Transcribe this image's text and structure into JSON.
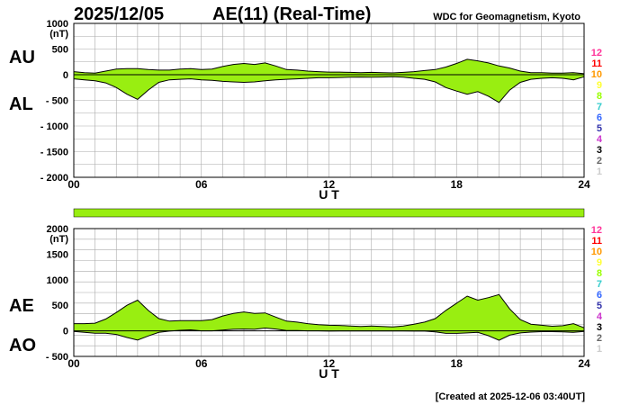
{
  "header": {
    "date": "2025/12/05",
    "title": "AE(11) (Real-Time)",
    "source": "WDC for Geomagnetism, Kyoto"
  },
  "footer": {
    "created": "[Created at 2025-12-06 03:40UT]"
  },
  "station_counts": {
    "labels": [
      "12",
      "11",
      "10",
      "9",
      "8",
      "7",
      "6",
      "5",
      "4",
      "3",
      "2",
      "1"
    ],
    "colors": [
      "#ff3399",
      "#ff0000",
      "#ff9900",
      "#ffff33",
      "#99ff00",
      "#33cccc",
      "#3366ff",
      "#3333aa",
      "#cc33cc",
      "#000000",
      "#666666",
      "#cccccc"
    ]
  },
  "colors": {
    "fill": "#99ee11",
    "line": "#000000",
    "grid": "#aaaaaa",
    "bar": "#99ee11"
  },
  "chart_data": [
    {
      "type": "area",
      "name": "AU/AL",
      "ylabels": [
        "AU",
        "AL"
      ],
      "unit": "(nT)",
      "xlabel": "U T",
      "xticks": [
        0,
        6,
        12,
        18,
        24
      ],
      "xticklabels": [
        "00",
        "06",
        "12",
        "18",
        "24"
      ],
      "xlim": [
        0,
        24
      ],
      "ylim": [
        -2000,
        1000
      ],
      "yticks": [
        1000,
        500,
        0,
        -500,
        -1000,
        -1500,
        -2000
      ],
      "yticklabels": [
        "1000",
        "500",
        "0",
        "- 500",
        "- 1000",
        "- 1500",
        "- 2000"
      ],
      "grid": true,
      "x": [
        0.0,
        0.5,
        1.0,
        1.5,
        2.0,
        2.5,
        3.0,
        3.5,
        4.0,
        4.5,
        5.0,
        5.5,
        6.0,
        6.5,
        7.0,
        7.5,
        8.0,
        8.5,
        9.0,
        9.5,
        10.0,
        10.5,
        11.0,
        11.5,
        12.0,
        12.5,
        13.0,
        13.5,
        14.0,
        14.5,
        15.0,
        15.5,
        16.0,
        16.5,
        17.0,
        17.5,
        18.0,
        18.5,
        19.0,
        19.5,
        20.0,
        20.5,
        21.0,
        21.5,
        22.0,
        22.5,
        23.0,
        23.5,
        24.0
      ],
      "series": [
        {
          "name": "AU",
          "values": [
            60,
            40,
            30,
            70,
            110,
            120,
            120,
            100,
            90,
            90,
            110,
            120,
            100,
            110,
            160,
            200,
            220,
            200,
            230,
            170,
            100,
            90,
            70,
            60,
            50,
            50,
            45,
            40,
            45,
            40,
            35,
            45,
            60,
            80,
            100,
            150,
            220,
            300,
            270,
            230,
            170,
            130,
            70,
            40,
            40,
            30,
            30,
            40,
            20
          ]
        },
        {
          "name": "AL",
          "values": [
            -80,
            -100,
            -120,
            -160,
            -250,
            -380,
            -480,
            -300,
            -150,
            -100,
            -90,
            -80,
            -100,
            -110,
            -130,
            -140,
            -150,
            -140,
            -120,
            -100,
            -90,
            -80,
            -70,
            -60,
            -60,
            -55,
            -50,
            -45,
            -50,
            -45,
            -40,
            -50,
            -70,
            -90,
            -140,
            -250,
            -320,
            -380,
            -330,
            -420,
            -540,
            -300,
            -150,
            -90,
            -70,
            -60,
            -70,
            -100,
            -40
          ]
        }
      ]
    },
    {
      "type": "area",
      "name": "AE/AO",
      "ylabels": [
        "AE",
        "AO"
      ],
      "unit": "(nT)",
      "xlabel": "U T",
      "xticks": [
        0,
        6,
        12,
        18,
        24
      ],
      "xticklabels": [
        "00",
        "06",
        "12",
        "18",
        "24"
      ],
      "xlim": [
        0,
        24
      ],
      "ylim": [
        -500,
        2000
      ],
      "yticks": [
        2000,
        1500,
        1000,
        500,
        0,
        -500
      ],
      "yticklabels": [
        "2000",
        "1500",
        "1000",
        "500",
        "0",
        "- 500"
      ],
      "grid": true,
      "x": [
        0.0,
        0.5,
        1.0,
        1.5,
        2.0,
        2.5,
        3.0,
        3.5,
        4.0,
        4.5,
        5.0,
        5.5,
        6.0,
        6.5,
        7.0,
        7.5,
        8.0,
        8.5,
        9.0,
        9.5,
        10.0,
        10.5,
        11.0,
        11.5,
        12.0,
        12.5,
        13.0,
        13.5,
        14.0,
        14.5,
        15.0,
        15.5,
        16.0,
        16.5,
        17.0,
        17.5,
        18.0,
        18.5,
        19.0,
        19.5,
        20.0,
        20.5,
        21.0,
        21.5,
        22.0,
        22.5,
        23.0,
        23.5,
        24.0
      ],
      "series": [
        {
          "name": "AE",
          "values": [
            140,
            140,
            150,
            230,
            360,
            500,
            600,
            400,
            240,
            190,
            200,
            200,
            200,
            220,
            290,
            340,
            370,
            340,
            350,
            270,
            190,
            170,
            140,
            120,
            110,
            105,
            95,
            85,
            95,
            85,
            75,
            95,
            130,
            170,
            240,
            400,
            540,
            680,
            600,
            650,
            710,
            430,
            220,
            130,
            110,
            90,
            100,
            140,
            60
          ]
        },
        {
          "name": "AO",
          "values": [
            -10,
            -30,
            -45,
            -45,
            -70,
            -130,
            -180,
            -100,
            -30,
            -5,
            10,
            20,
            0,
            0,
            15,
            30,
            35,
            30,
            55,
            35,
            5,
            5,
            0,
            0,
            -5,
            -2,
            -2,
            -2,
            -2,
            -2,
            -2,
            -2,
            -5,
            -5,
            -20,
            -50,
            -50,
            -40,
            -30,
            -95,
            -185,
            -85,
            -40,
            -25,
            -15,
            -15,
            -20,
            -30,
            -10
          ]
        }
      ]
    }
  ]
}
